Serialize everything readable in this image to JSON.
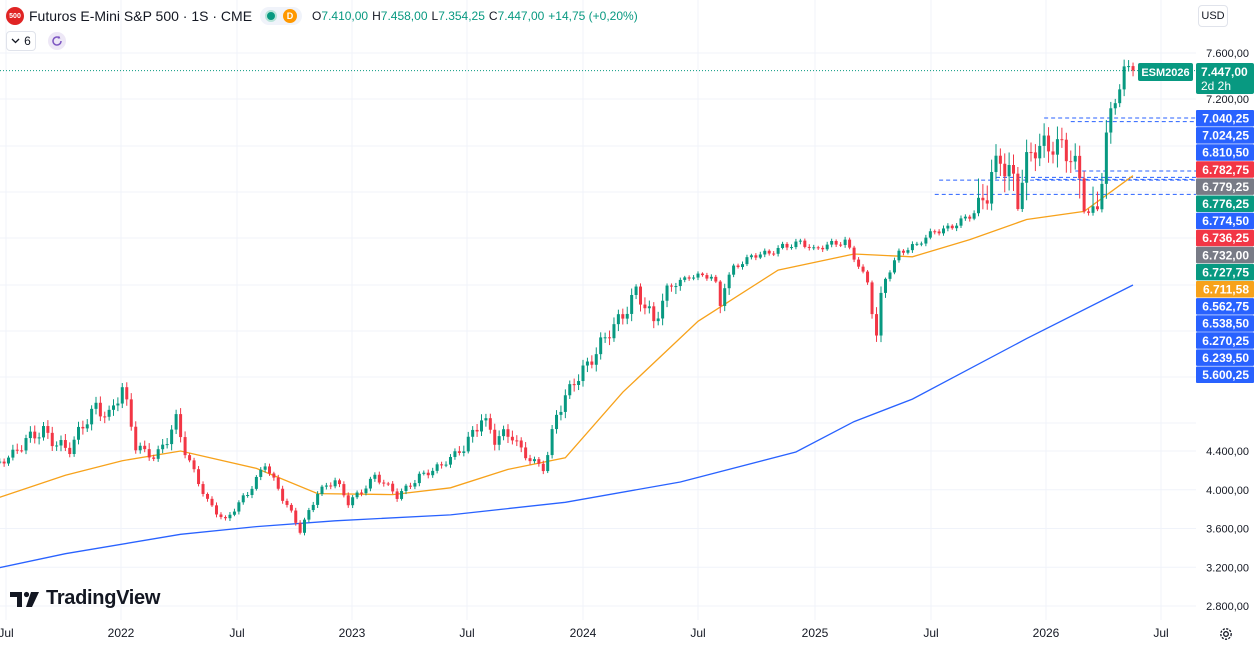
{
  "header": {
    "logo_text": "500",
    "title": "Futuros E-Mini S&P 500 · 1S · CME",
    "badge_letter": "D",
    "open": "7.410,00",
    "high": "7.458,00",
    "low": "7.354,25",
    "close": "7.447,00",
    "change": "+14,75 (+0,20%)",
    "o_key": "O",
    "h_key": "H",
    "l_key": "L",
    "c_key": "C",
    "indicator_count": "6",
    "currency": "USD"
  },
  "branding": {
    "name": "TradingView"
  },
  "colors": {
    "up": "#089981",
    "down": "#f23645",
    "ma_fast": "#f7a21b",
    "ma_slow": "#2962ff",
    "label_blue": "#2962ff",
    "label_red": "#f23645",
    "label_green": "#089981",
    "label_gray": "#787b86",
    "label_orange": "#f7a21b"
  },
  "chart_data": {
    "type": "candlestick",
    "symbol_label": "ESM2026",
    "last_price": "7.447,00",
    "countdown": "2d 2h",
    "y_ticks": [
      "7.600,00",
      "7.200,00",
      "4.400,00",
      "4.000,00",
      "3.600,00",
      "3.200,00",
      "2.800,00"
    ],
    "y_tick_values": [
      7600,
      7200,
      4400,
      4000,
      3600,
      3200,
      2800
    ],
    "ylim": [
      2650,
      7800
    ],
    "x_ticks": [
      "Jul",
      "2022",
      "Jul",
      "2023",
      "Jul",
      "2024",
      "Jul",
      "2025",
      "Jul",
      "2026",
      "Jul"
    ],
    "x_tick_dates": [
      "2021-07-01",
      "2022-01-01",
      "2022-07-01",
      "2023-01-01",
      "2023-07-01",
      "2024-01-01",
      "2024-07-01",
      "2025-01-01",
      "2025-07-01",
      "2026-01-01",
      "2026-07-01"
    ],
    "series": [
      {
        "name": "ESM2026",
        "type": "candlestick",
        "weekly_close": [
          {
            "date": "2021-04-26",
            "v": 4180
          },
          {
            "date": "2021-06-07",
            "v": 4250
          },
          {
            "date": "2021-07-19",
            "v": 4395
          },
          {
            "date": "2021-08-30",
            "v": 4530
          },
          {
            "date": "2021-10-11",
            "v": 4390
          },
          {
            "date": "2021-11-22",
            "v": 4670
          },
          {
            "date": "2021-12-13",
            "v": 4620
          },
          {
            "date": "2022-01-03",
            "v": 4750
          },
          {
            "date": "2022-01-24",
            "v": 4420
          },
          {
            "date": "2022-02-21",
            "v": 4360
          },
          {
            "date": "2022-03-28",
            "v": 4560
          },
          {
            "date": "2022-04-25",
            "v": 4180
          },
          {
            "date": "2022-05-16",
            "v": 3900
          },
          {
            "date": "2022-06-13",
            "v": 3670
          },
          {
            "date": "2022-07-18",
            "v": 3960
          },
          {
            "date": "2022-08-15",
            "v": 4290
          },
          {
            "date": "2022-09-12",
            "v": 3900
          },
          {
            "date": "2022-10-10",
            "v": 3580
          },
          {
            "date": "2022-11-07",
            "v": 3990
          },
          {
            "date": "2022-12-05",
            "v": 4080
          },
          {
            "date": "2022-12-26",
            "v": 3860
          },
          {
            "date": "2023-02-06",
            "v": 4150
          },
          {
            "date": "2023-03-13",
            "v": 3920
          },
          {
            "date": "2023-04-17",
            "v": 4160
          },
          {
            "date": "2023-05-22",
            "v": 4230
          },
          {
            "date": "2023-06-19",
            "v": 4400
          },
          {
            "date": "2023-07-24",
            "v": 4600
          },
          {
            "date": "2023-08-14",
            "v": 4450
          },
          {
            "date": "2023-09-11",
            "v": 4500
          },
          {
            "date": "2023-10-09",
            "v": 4330
          },
          {
            "date": "2023-10-30",
            "v": 4210
          },
          {
            "date": "2023-11-20",
            "v": 4600
          },
          {
            "date": "2023-12-18",
            "v": 4830
          },
          {
            "date": "2024-01-22",
            "v": 4950
          },
          {
            "date": "2024-02-19",
            "v": 5120
          },
          {
            "date": "2024-03-25",
            "v": 5340
          },
          {
            "date": "2024-04-22",
            "v": 5120
          },
          {
            "date": "2024-05-20",
            "v": 5380
          },
          {
            "date": "2024-06-17",
            "v": 5520
          },
          {
            "date": "2024-07-22",
            "v": 5480
          },
          {
            "date": "2024-08-05",
            "v": 5250
          },
          {
            "date": "2024-08-26",
            "v": 5690
          },
          {
            "date": "2024-09-23",
            "v": 5840
          },
          {
            "date": "2024-10-21",
            "v": 5900
          },
          {
            "date": "2024-11-11",
            "v": 6060
          },
          {
            "date": "2024-12-09",
            "v": 6100
          },
          {
            "date": "2024-12-30",
            "v": 5940
          },
          {
            "date": "2025-01-27",
            "v": 6100
          },
          {
            "date": "2025-02-17",
            "v": 6140
          },
          {
            "date": "2025-03-10",
            "v": 5680
          },
          {
            "date": "2025-04-07",
            "v": 5060
          },
          {
            "date": "2025-04-21",
            "v": 5500
          },
          {
            "date": "2025-05-12",
            "v": 5940
          },
          {
            "date": "2025-06-09",
            "v": 6030
          },
          {
            "date": "2025-07-07",
            "v": 6310
          },
          {
            "date": "2025-08-04",
            "v": 6400
          },
          {
            "date": "2025-09-01",
            "v": 6530
          },
          {
            "date": "2025-09-29",
            "v": 6780
          },
          {
            "date": "2025-10-20",
            "v": 6900
          },
          {
            "date": "2025-11-17",
            "v": 6700
          },
          {
            "date": "2025-12-15",
            "v": 6920
          },
          {
            "date": "2026-01-12",
            "v": 6960
          },
          {
            "date": "2026-02-09",
            "v": 6850
          },
          {
            "date": "2026-03-09",
            "v": 6620
          },
          {
            "date": "2026-03-23",
            "v": 6720
          },
          {
            "date": "2026-04-06",
            "v": 6980
          },
          {
            "date": "2026-04-20",
            "v": 7200
          },
          {
            "date": "2026-05-04",
            "v": 7400
          },
          {
            "date": "2026-05-18",
            "v": 7447
          }
        ]
      },
      {
        "name": "",
        "type": "line",
        "role": "ma_fast",
        "points": [
          {
            "date": "2021-04-26",
            "v": 3800
          },
          {
            "date": "2021-10-04",
            "v": 4150
          },
          {
            "date": "2022-01-03",
            "v": 4300
          },
          {
            "date": "2022-04-04",
            "v": 4400
          },
          {
            "date": "2022-08-01",
            "v": 4220
          },
          {
            "date": "2022-11-07",
            "v": 3960
          },
          {
            "date": "2023-03-06",
            "v": 3950
          },
          {
            "date": "2023-06-05",
            "v": 4020
          },
          {
            "date": "2023-09-04",
            "v": 4210
          },
          {
            "date": "2023-12-04",
            "v": 4330
          },
          {
            "date": "2024-03-04",
            "v": 4740
          },
          {
            "date": "2024-07-01",
            "v": 5150
          },
          {
            "date": "2024-11-04",
            "v": 5620
          },
          {
            "date": "2025-03-03",
            "v": 5900
          },
          {
            "date": "2025-06-02",
            "v": 5850
          },
          {
            "date": "2025-09-01",
            "v": 6150
          },
          {
            "date": "2025-12-01",
            "v": 6500
          },
          {
            "date": "2026-03-02",
            "v": 6640
          },
          {
            "date": "2026-05-18",
            "v": 6790
          }
        ]
      },
      {
        "name": "",
        "type": "line",
        "role": "ma_slow",
        "points": [
          {
            "date": "2021-04-26",
            "v": 3120
          },
          {
            "date": "2021-10-04",
            "v": 3340
          },
          {
            "date": "2022-04-04",
            "v": 3540
          },
          {
            "date": "2022-08-01",
            "v": 3620
          },
          {
            "date": "2022-12-05",
            "v": 3680
          },
          {
            "date": "2023-06-05",
            "v": 3740
          },
          {
            "date": "2023-12-04",
            "v": 3870
          },
          {
            "date": "2024-06-03",
            "v": 4080
          },
          {
            "date": "2024-12-02",
            "v": 4390
          },
          {
            "date": "2025-03-03",
            "v": 4570
          },
          {
            "date": "2025-06-02",
            "v": 4700
          },
          {
            "date": "2025-12-01",
            "v": 5050
          },
          {
            "date": "2026-05-18",
            "v": 5360
          }
        ]
      }
    ],
    "price_labels": [
      {
        "text": "7.040,25",
        "kind": "blue"
      },
      {
        "text": "7.024,25",
        "kind": "blue"
      },
      {
        "text": "6.810,50",
        "kind": "blue"
      },
      {
        "text": "6.782,75",
        "kind": "red"
      },
      {
        "text": "6.779,25",
        "kind": "gray"
      },
      {
        "text": "6.776,25",
        "kind": "green"
      },
      {
        "text": "6.774,50",
        "kind": "blue"
      },
      {
        "text": "6.736,25",
        "kind": "red"
      },
      {
        "text": "6.732,00",
        "kind": "gray"
      },
      {
        "text": "6.727,75",
        "kind": "green"
      },
      {
        "text": "6.711,58",
        "kind": "orange"
      },
      {
        "text": "6.562,75",
        "kind": "blue"
      },
      {
        "text": "6.538,50",
        "kind": "blue"
      },
      {
        "text": "6.270,25",
        "kind": "blue"
      },
      {
        "text": "6.239,50",
        "kind": "blue"
      },
      {
        "text": "5.600,25",
        "kind": "blue"
      }
    ],
    "grid": true,
    "legend": "none"
  }
}
